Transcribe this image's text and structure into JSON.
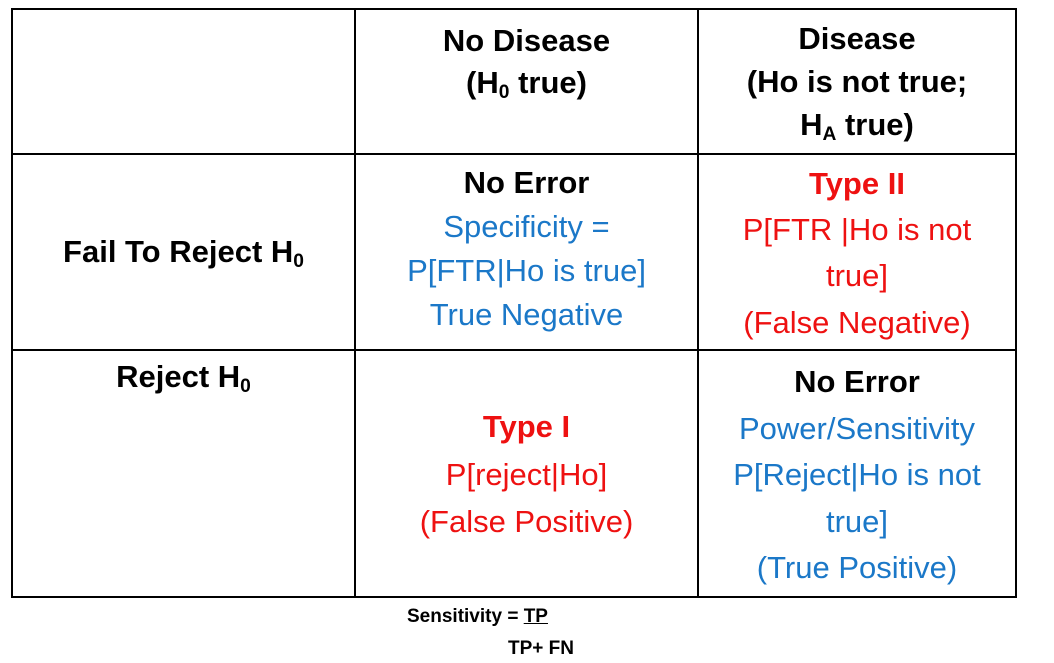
{
  "header": {
    "no_disease_title": "No Disease",
    "no_disease_sub_open": "(H",
    "no_disease_sub_index": "0",
    "no_disease_sub_close": " true)",
    "disease_title": "Disease",
    "disease_line2": "(Ho is not true;",
    "disease_line3_h": "H",
    "disease_line3_index": "A",
    "disease_line3_rest": " true)"
  },
  "row_fail": {
    "label_text": "Fail To Reject H",
    "label_index": "0",
    "no_error_title": "No Error",
    "specificity_line1": "Specificity =",
    "specificity_line2": "P[FTR|Ho is true]",
    "true_negative": "True Negative",
    "type_ii_title": "Type II",
    "type_ii_line1": "P[FTR |Ho is not",
    "type_ii_line2": "true]",
    "false_negative": "(False Negative)"
  },
  "row_reject": {
    "label_text": "Reject H",
    "label_index": "0",
    "type_i_title": "Type I",
    "type_i_prob": "P[reject|Ho]",
    "false_positive": "(False Positive)",
    "no_error_title": "No Error",
    "power_label": "Power/Sensitivity",
    "power_line1": "P[Reject|Ho is not",
    "power_line2": "true]",
    "true_positive": "(True Positive)"
  },
  "formula": {
    "lhs": "Sensitivity = ",
    "numerator": "TP",
    "denominator": "TP+ FN"
  },
  "colors": {
    "blue_text": "#1b78c8",
    "red_text": "#ee1111",
    "border": "#000000"
  }
}
